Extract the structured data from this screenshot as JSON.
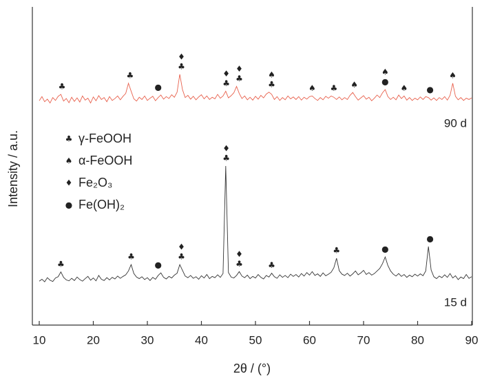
{
  "chart_data": {
    "type": "line",
    "xlabel": "2θ / (°)",
    "ylabel": "Intensity / a.u.",
    "xlim": [
      10,
      90
    ],
    "xticks": [
      10,
      20,
      30,
      40,
      50,
      60,
      70,
      80,
      90
    ],
    "ylim": [
      0,
      100
    ],
    "legend": [
      {
        "symbol": "♣",
        "label": "γ-FeOOH"
      },
      {
        "symbol": "♠",
        "label": "α-FeOOH"
      },
      {
        "symbol": "♦",
        "label": "Fe₂O₃"
      },
      {
        "symbol": "●",
        "label": "Fe(OH)₂"
      }
    ],
    "x": [
      10,
      10.5,
      11,
      11.5,
      12,
      12.5,
      13,
      13.5,
      14,
      14.5,
      15,
      15.5,
      16,
      16.5,
      17,
      17.5,
      18,
      18.5,
      19,
      19.5,
      20,
      20.5,
      21,
      21.5,
      22,
      22.5,
      23,
      23.5,
      24,
      24.5,
      25,
      25.5,
      26,
      26.5,
      27,
      27.5,
      28,
      28.5,
      29,
      29.5,
      30,
      30.5,
      31,
      31.5,
      32,
      32.5,
      33,
      33.5,
      34,
      34.5,
      35,
      35.5,
      36,
      36.5,
      37,
      37.5,
      38,
      38.5,
      39,
      39.5,
      40,
      40.5,
      41,
      41.5,
      42,
      42.5,
      43,
      43.5,
      44,
      44.5,
      45,
      45.5,
      46,
      46.5,
      47,
      47.5,
      48,
      48.5,
      49,
      49.5,
      50,
      50.5,
      51,
      51.5,
      52,
      52.5,
      53,
      53.5,
      54,
      54.5,
      55,
      55.5,
      56,
      56.5,
      57,
      57.5,
      58,
      58.5,
      59,
      59.5,
      60,
      60.5,
      61,
      61.5,
      62,
      62.5,
      63,
      63.5,
      64,
      64.5,
      65,
      65.5,
      66,
      66.5,
      67,
      67.5,
      68,
      68.5,
      69,
      69.5,
      70,
      70.5,
      71,
      71.5,
      72,
      72.5,
      73,
      73.5,
      74,
      74.5,
      75,
      75.5,
      76,
      76.5,
      77,
      77.5,
      78,
      78.5,
      79,
      79.5,
      80,
      80.5,
      81,
      81.5,
      82,
      82.5,
      83,
      83.5,
      84,
      84.5,
      85,
      85.5,
      86,
      86.5,
      87,
      87.5,
      88,
      88.5,
      89,
      89.5,
      90
    ],
    "series": [
      {
        "name": "15 d",
        "color": "#333333",
        "values": [
          13.8,
          14.4,
          13.6,
          14.9,
          14.1,
          13.7,
          14.8,
          15.2,
          16.7,
          15.0,
          14.2,
          13.9,
          14.7,
          14.0,
          15.1,
          14.3,
          13.8,
          14.6,
          15.3,
          14.1,
          14.8,
          13.9,
          15.6,
          14.4,
          14.0,
          14.9,
          14.2,
          15.0,
          14.5,
          15.4,
          14.7,
          15.3,
          15.8,
          17.0,
          19.0,
          16.2,
          15.1,
          14.6,
          15.2,
          14.3,
          14.9,
          14.0,
          15.0,
          14.4,
          15.6,
          16.4,
          15.0,
          14.5,
          15.3,
          14.8,
          15.7,
          16.3,
          19.0,
          17.2,
          15.4,
          14.9,
          15.6,
          14.7,
          15.2,
          14.4,
          15.5,
          14.8,
          15.9,
          14.6,
          15.3,
          14.9,
          15.8,
          15.0,
          16.2,
          50.0,
          16.5,
          15.1,
          14.8,
          15.6,
          16.8,
          15.4,
          14.9,
          15.7,
          14.6,
          15.3,
          14.8,
          15.9,
          15.0,
          14.5,
          15.6,
          15.1,
          16.3,
          15.2,
          14.7,
          15.8,
          15.0,
          15.6,
          14.9,
          16.0,
          15.3,
          15.9,
          15.1,
          16.2,
          15.4,
          16.5,
          15.7,
          16.8,
          15.6,
          16.1,
          15.3,
          16.4,
          15.5,
          16.0,
          16.6,
          18.0,
          21.0,
          17.1,
          16.0,
          15.6,
          16.3,
          15.4,
          16.1,
          17.0,
          15.8,
          16.4,
          17.2,
          15.9,
          16.5,
          15.7,
          16.2,
          17.0,
          17.8,
          19.3,
          21.4,
          18.7,
          17.0,
          16.0,
          15.4,
          16.2,
          15.3,
          15.9,
          15.0,
          15.7,
          15.2,
          16.0,
          15.4,
          16.1,
          15.5,
          17.0,
          24.7,
          17.3,
          15.2,
          14.6,
          15.4,
          14.9,
          15.8,
          15.0,
          16.2,
          14.8,
          15.5,
          14.3,
          15.1,
          14.6,
          15.9,
          14.7,
          15.2
        ],
        "peaks": [
          {
            "x": 14,
            "labels": [
              "♣"
            ]
          },
          {
            "x": 27,
            "labels": [
              "♣"
            ]
          },
          {
            "x": 32,
            "labels": [
              "●"
            ]
          },
          {
            "x": 36.3,
            "labels": [
              "♦",
              "♣"
            ]
          },
          {
            "x": 44.6,
            "labels": [
              "♦",
              "♣"
            ]
          },
          {
            "x": 47,
            "labels": [
              "♦",
              "♣"
            ]
          },
          {
            "x": 53,
            "labels": [
              "♣"
            ]
          },
          {
            "x": 65,
            "labels": [
              "♣"
            ]
          },
          {
            "x": 74,
            "labels": [
              "●"
            ]
          },
          {
            "x": 82.3,
            "labels": [
              "●"
            ]
          }
        ]
      },
      {
        "name": "90 d",
        "color": "#e8604c",
        "values": [
          70.5,
          71.8,
          70.2,
          71.0,
          69.8,
          71.5,
          70.6,
          71.9,
          72.5,
          70.4,
          71.2,
          69.9,
          71.6,
          70.3,
          71.4,
          70.1,
          72.0,
          70.7,
          71.3,
          69.8,
          71.7,
          70.5,
          72.1,
          70.9,
          71.5,
          70.2,
          71.8,
          70.6,
          71.2,
          72.0,
          70.8,
          71.9,
          72.8,
          76.0,
          73.5,
          71.1,
          70.4,
          71.6,
          70.9,
          72.0,
          70.6,
          71.3,
          71.9,
          70.5,
          71.5,
          72.3,
          71.0,
          71.8,
          71.2,
          72.4,
          71.6,
          73.2,
          78.8,
          74.0,
          71.5,
          72.2,
          71.0,
          71.9,
          70.8,
          71.7,
          72.4,
          71.1,
          72.0,
          70.9,
          71.6,
          71.1,
          72.5,
          71.3,
          72.0,
          73.5,
          71.4,
          72.1,
          73.0,
          75.0,
          72.8,
          71.2,
          72.0,
          70.8,
          71.6,
          70.7,
          71.9,
          71.0,
          72.2,
          71.4,
          72.6,
          73.2,
          72.5,
          70.9,
          71.8,
          70.6,
          71.5,
          70.8,
          72.0,
          71.1,
          71.7,
          70.9,
          71.8,
          70.7,
          71.6,
          71.0,
          71.8,
          72.0,
          71.2,
          70.6,
          71.5,
          70.8,
          71.9,
          71.3,
          72.0,
          71.6,
          70.9,
          71.7,
          70.8,
          71.5,
          70.9,
          72.2,
          73.1,
          71.8,
          70.7,
          71.4,
          72.1,
          71.0,
          71.6,
          70.5,
          71.3,
          72.3,
          71.5,
          73.0,
          74.0,
          71.8,
          70.9,
          71.6,
          70.8,
          72.3,
          71.2,
          72.0,
          70.7,
          71.5,
          70.6,
          71.3,
          70.8,
          71.7,
          70.9,
          71.8,
          71.5,
          70.7,
          71.4,
          70.6,
          71.5,
          70.9,
          71.8,
          70.7,
          72.2,
          76.0,
          71.9,
          70.8,
          71.5,
          70.6,
          71.3,
          70.9,
          71.4
        ],
        "peaks": [
          {
            "x": 14.2,
            "labels": [
              "♣"
            ]
          },
          {
            "x": 26.8,
            "labels": [
              "♣"
            ]
          },
          {
            "x": 32,
            "labels": [
              "●"
            ]
          },
          {
            "x": 36.3,
            "labels": [
              "♦",
              "♣"
            ]
          },
          {
            "x": 44.6,
            "labels": [
              "♦",
              "♣"
            ]
          },
          {
            "x": 47,
            "labels": [
              "♦",
              "♣"
            ]
          },
          {
            "x": 53,
            "labels": [
              "♠",
              "♣"
            ]
          },
          {
            "x": 60.5,
            "labels": [
              "♠"
            ]
          },
          {
            "x": 64.5,
            "labels": [
              "♣"
            ]
          },
          {
            "x": 68.3,
            "labels": [
              "♠"
            ]
          },
          {
            "x": 74,
            "labels": [
              "♠",
              "●"
            ]
          },
          {
            "x": 77.5,
            "labels": [
              "♠"
            ]
          },
          {
            "x": 82.3,
            "labels": [
              "●"
            ]
          },
          {
            "x": 86.5,
            "labels": [
              "♠"
            ]
          }
        ]
      }
    ]
  }
}
